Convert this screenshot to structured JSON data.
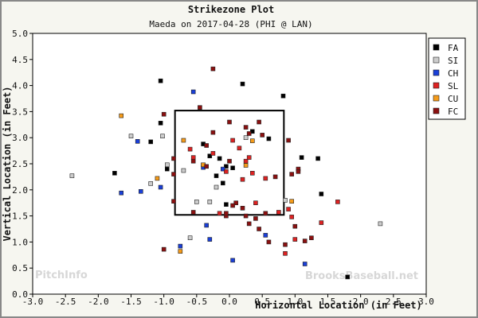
{
  "chart_data": {
    "type": "scatter",
    "title": "Strikezone Plot",
    "subtitle": "Maeda on 2017-04-28 (PHI @ LAN)",
    "xlabel": "Horizontal Location (in Feet)",
    "ylabel": "Vertical Location (in Feet)",
    "xlim": [
      -3.0,
      3.0
    ],
    "ylim": [
      0.0,
      5.0
    ],
    "x_ticks": [
      "-3.0",
      "-2.5",
      "-2.0",
      "-1.5",
      "-1.0",
      "-0.5",
      "0.0",
      "0.5",
      "1.0",
      "1.5",
      "2.0",
      "2.5",
      "3.0"
    ],
    "y_ticks": [
      "0.0",
      "0.5",
      "1.0",
      "1.5",
      "2.0",
      "2.5",
      "3.0",
      "3.5",
      "4.0",
      "4.5",
      "5.0"
    ],
    "grid": false,
    "legend_position": "right",
    "strike_zone": {
      "x": [
        -0.83,
        0.83
      ],
      "y": [
        1.52,
        3.52
      ]
    },
    "watermarks": [
      "PitchInfo",
      "BrooksBaseball.net"
    ],
    "series": [
      {
        "name": "FA",
        "color": "#000000",
        "points": [
          [
            -1.05,
            4.09
          ],
          [
            0.2,
            4.03
          ],
          [
            0.82,
            3.8
          ],
          [
            -1.05,
            3.28
          ],
          [
            -1.2,
            2.92
          ],
          [
            -0.95,
            2.4
          ],
          [
            -1.75,
            2.32
          ],
          [
            -0.4,
            2.88
          ],
          [
            -0.3,
            2.65
          ],
          [
            -0.2,
            2.27
          ],
          [
            -0.05,
            2.45
          ],
          [
            0.05,
            2.42
          ],
          [
            -0.1,
            2.13
          ],
          [
            0.35,
            3.12
          ],
          [
            0.6,
            2.98
          ],
          [
            1.1,
            2.62
          ],
          [
            1.35,
            2.6
          ],
          [
            1.4,
            1.92
          ],
          [
            1.8,
            0.33
          ],
          [
            -0.05,
            1.72
          ],
          [
            -0.15,
            2.6
          ]
        ]
      },
      {
        "name": "SI",
        "color": "#cccccc",
        "points": [
          [
            -2.4,
            2.27
          ],
          [
            -1.5,
            3.03
          ],
          [
            -1.2,
            2.12
          ],
          [
            -1.02,
            3.03
          ],
          [
            -0.95,
            2.48
          ],
          [
            -0.7,
            2.37
          ],
          [
            -0.5,
            1.77
          ],
          [
            -0.3,
            1.77
          ],
          [
            -0.2,
            2.05
          ],
          [
            -0.6,
            1.08
          ],
          [
            0.25,
            3.0
          ],
          [
            2.3,
            1.35
          ],
          [
            0.85,
            1.8
          ]
        ]
      },
      {
        "name": "CH",
        "color": "#1a3fd8",
        "points": [
          [
            -1.65,
            1.94
          ],
          [
            -1.35,
            1.97
          ],
          [
            -1.05,
            2.05
          ],
          [
            -0.55,
            3.88
          ],
          [
            -0.35,
            1.32
          ],
          [
            -0.3,
            1.05
          ],
          [
            -0.1,
            2.4
          ],
          [
            -0.4,
            2.43
          ],
          [
            0.05,
            0.65
          ],
          [
            0.55,
            1.13
          ],
          [
            1.15,
            0.58
          ],
          [
            -1.4,
            2.93
          ],
          [
            -0.75,
            0.92
          ]
        ]
      },
      {
        "name": "SL",
        "color": "#dd2222",
        "points": [
          [
            -0.6,
            2.78
          ],
          [
            -0.55,
            2.62
          ],
          [
            -0.4,
            2.48
          ],
          [
            -0.25,
            2.7
          ],
          [
            0.05,
            2.95
          ],
          [
            0.15,
            2.8
          ],
          [
            0.25,
            2.55
          ],
          [
            0.2,
            2.2
          ],
          [
            0.35,
            2.32
          ],
          [
            0.55,
            2.22
          ],
          [
            -0.05,
            2.35
          ],
          [
            0.4,
            1.75
          ],
          [
            -0.15,
            1.55
          ],
          [
            0.75,
            1.57
          ],
          [
            0.95,
            1.48
          ],
          [
            1.0,
            1.05
          ],
          [
            0.85,
            0.78
          ],
          [
            1.4,
            1.37
          ],
          [
            1.65,
            1.77
          ],
          [
            0.9,
            1.63
          ],
          [
            0.3,
            2.62
          ]
        ]
      },
      {
        "name": "CU",
        "color": "#f59b1a",
        "points": [
          [
            -1.65,
            3.42
          ],
          [
            -1.1,
            2.22
          ],
          [
            -0.7,
            2.95
          ],
          [
            -0.4,
            2.48
          ],
          [
            0.25,
            2.47
          ],
          [
            0.35,
            2.94
          ],
          [
            -0.75,
            0.82
          ],
          [
            0.95,
            1.78
          ]
        ]
      },
      {
        "name": "FC",
        "color": "#8b1010",
        "points": [
          [
            -0.25,
            4.32
          ],
          [
            -0.45,
            3.58
          ],
          [
            -1.0,
            3.45
          ],
          [
            -0.85,
            2.6
          ],
          [
            -0.55,
            2.55
          ],
          [
            -0.35,
            2.85
          ],
          [
            -0.25,
            3.1
          ],
          [
            0.0,
            3.3
          ],
          [
            0.25,
            3.2
          ],
          [
            0.3,
            3.08
          ],
          [
            0.45,
            3.3
          ],
          [
            0.5,
            3.05
          ],
          [
            0.7,
            2.25
          ],
          [
            0.95,
            2.3
          ],
          [
            1.05,
            2.4
          ],
          [
            0.9,
            2.95
          ],
          [
            0.55,
            1.55
          ],
          [
            0.4,
            1.45
          ],
          [
            0.2,
            1.65
          ],
          [
            0.1,
            1.75
          ],
          [
            0.05,
            1.7
          ],
          [
            -0.05,
            1.5
          ],
          [
            0.3,
            1.35
          ],
          [
            0.45,
            1.25
          ],
          [
            0.6,
            1.0
          ],
          [
            1.0,
            1.3
          ],
          [
            1.25,
            1.08
          ],
          [
            1.15,
            1.02
          ],
          [
            0.85,
            0.95
          ],
          [
            1.05,
            2.35
          ],
          [
            -1.0,
            0.86
          ],
          [
            -0.85,
            1.78
          ],
          [
            -0.55,
            1.57
          ],
          [
            -0.05,
            1.55
          ],
          [
            0.0,
            2.55
          ],
          [
            -0.35,
            2.45
          ],
          [
            -0.85,
            2.3
          ],
          [
            0.25,
            1.5
          ]
        ]
      }
    ]
  }
}
